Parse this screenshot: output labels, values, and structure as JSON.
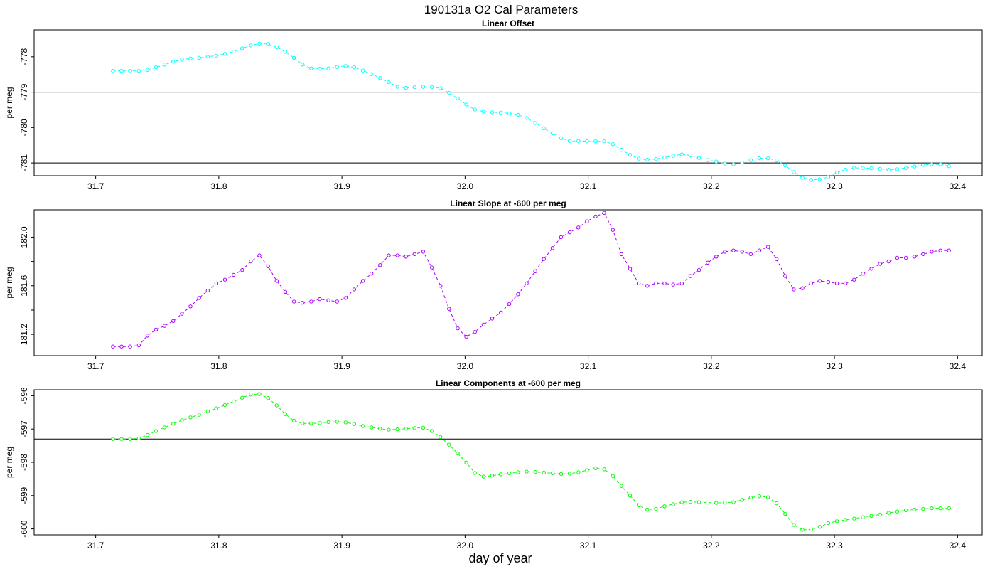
{
  "figure": {
    "title": "190131a   O2 Cal Parameters",
    "xlabel": "day of year"
  },
  "chart_data": [
    {
      "type": "line",
      "title": "Linear Offset",
      "ylabel": "per meg",
      "xlabel": "day of year",
      "color": "#00ffff",
      "xlim": [
        31.65,
        32.42
      ],
      "ylim": [
        -781.36,
        -777.24
      ],
      "xticks": [
        31.7,
        31.8,
        31.9,
        32.0,
        32.1,
        32.2,
        32.3,
        32.4
      ],
      "yticks": [
        -781,
        -780,
        -779,
        -778
      ],
      "hlines": [
        -779.0,
        -781.0
      ],
      "grid": false,
      "legend": "none",
      "series": [
        {
          "marker": "open-circle",
          "line": "dashed",
          "x": [
            31.714,
            31.721,
            31.728,
            31.735,
            31.742,
            31.749,
            31.756,
            31.763,
            31.77,
            31.777,
            31.784,
            31.791,
            31.798,
            31.805,
            31.812,
            31.819,
            31.826,
            31.833,
            31.84,
            31.847,
            31.854,
            31.861,
            31.868,
            31.875,
            31.882,
            31.889,
            31.896,
            31.903,
            31.91,
            31.917,
            31.924,
            31.931,
            31.938,
            31.945,
            31.952,
            31.959,
            31.966,
            31.973,
            31.98,
            31.987,
            31.994,
            32.001,
            32.008,
            32.015,
            32.022,
            32.029,
            32.036,
            32.043,
            32.05,
            32.057,
            32.064,
            32.071,
            32.078,
            32.085,
            32.092,
            32.099,
            32.106,
            32.113,
            32.12,
            32.127,
            32.134,
            32.141,
            32.148,
            32.155,
            32.162,
            32.169,
            32.176,
            32.183,
            32.19,
            32.197,
            32.204,
            32.211,
            32.218,
            32.225,
            32.232,
            32.239,
            32.246,
            32.253,
            32.26,
            32.267,
            32.274,
            32.281,
            32.288,
            32.295,
            32.302,
            32.309,
            32.316,
            32.323,
            32.33,
            32.337,
            32.344,
            32.351,
            32.358,
            32.365,
            32.372,
            32.379,
            32.386,
            32.393
          ],
          "y": [
            -778.4,
            -778.4,
            -778.4,
            -778.4,
            -778.37,
            -778.3,
            -778.22,
            -778.14,
            -778.08,
            -778.05,
            -778.03,
            -778.0,
            -777.97,
            -777.92,
            -777.85,
            -777.76,
            -777.68,
            -777.63,
            -777.64,
            -777.73,
            -777.86,
            -778.03,
            -778.22,
            -778.33,
            -778.34,
            -778.33,
            -778.29,
            -778.26,
            -778.3,
            -778.39,
            -778.49,
            -778.6,
            -778.72,
            -778.85,
            -778.88,
            -778.86,
            -778.85,
            -778.86,
            -778.89,
            -779.02,
            -779.18,
            -779.35,
            -779.49,
            -779.55,
            -779.57,
            -779.58,
            -779.6,
            -779.64,
            -779.73,
            -779.87,
            -780.02,
            -780.16,
            -780.3,
            -780.38,
            -780.38,
            -780.39,
            -780.39,
            -780.39,
            -780.47,
            -780.63,
            -780.77,
            -780.88,
            -780.91,
            -780.89,
            -780.85,
            -780.8,
            -780.76,
            -780.79,
            -780.86,
            -780.92,
            -780.96,
            -781.02,
            -781.04,
            -780.99,
            -780.92,
            -780.87,
            -780.87,
            -780.93,
            -781.07,
            -781.26,
            -781.42,
            -781.48,
            -781.46,
            -781.4,
            -781.27,
            -781.19,
            -781.14,
            -781.14,
            -781.15,
            -781.17,
            -781.19,
            -781.18,
            -781.14,
            -781.1,
            -781.06,
            -781.04,
            -781.04,
            -781.09
          ]
        }
      ]
    },
    {
      "type": "line",
      "title": "Linear Slope at -600 per meg",
      "ylabel": "per meg",
      "xlabel": "day of year",
      "color": "#aa00ff",
      "xlim": [
        31.65,
        32.42
      ],
      "ylim": [
        181.025,
        182.225
      ],
      "xticks": [
        31.7,
        31.8,
        31.9,
        32.0,
        32.1,
        32.2,
        32.3,
        32.4
      ],
      "yticks": [
        181.2,
        181.6,
        182.0
      ],
      "yticks_minor": [
        181.4,
        181.8
      ],
      "hlines": [],
      "grid": false,
      "legend": "none",
      "series": [
        {
          "marker": "open-circle",
          "line": "dashed",
          "x": [
            31.714,
            31.721,
            31.728,
            31.735,
            31.742,
            31.749,
            31.756,
            31.763,
            31.77,
            31.777,
            31.784,
            31.791,
            31.798,
            31.805,
            31.812,
            31.819,
            31.826,
            31.833,
            31.84,
            31.847,
            31.854,
            31.861,
            31.868,
            31.875,
            31.882,
            31.889,
            31.896,
            31.903,
            31.91,
            31.917,
            31.924,
            31.931,
            31.938,
            31.945,
            31.952,
            31.959,
            31.966,
            31.973,
            31.98,
            31.987,
            31.994,
            32.001,
            32.008,
            32.015,
            32.022,
            32.029,
            32.036,
            32.043,
            32.05,
            32.057,
            32.064,
            32.071,
            32.078,
            32.085,
            32.092,
            32.099,
            32.106,
            32.113,
            32.12,
            32.127,
            32.134,
            32.141,
            32.148,
            32.155,
            32.162,
            32.169,
            32.176,
            32.183,
            32.19,
            32.197,
            32.204,
            32.211,
            32.218,
            32.225,
            32.232,
            32.239,
            32.246,
            32.253,
            32.26,
            32.267,
            32.274,
            32.281,
            32.288,
            32.295,
            32.302,
            32.309,
            32.316,
            32.323,
            32.33,
            32.337,
            32.344,
            32.351,
            32.358,
            32.365,
            32.372,
            32.379,
            32.386,
            32.393
          ],
          "y": [
            181.1,
            181.1,
            181.1,
            181.11,
            181.19,
            181.24,
            181.27,
            181.31,
            181.37,
            181.43,
            181.5,
            181.56,
            181.62,
            181.65,
            181.69,
            181.73,
            181.8,
            181.85,
            181.76,
            181.64,
            181.55,
            181.47,
            181.46,
            181.47,
            181.49,
            181.48,
            181.47,
            181.5,
            181.57,
            181.64,
            181.7,
            181.77,
            181.85,
            181.85,
            181.84,
            181.86,
            181.88,
            181.75,
            181.6,
            181.41,
            181.25,
            181.18,
            181.22,
            181.28,
            181.33,
            181.38,
            181.45,
            181.53,
            181.62,
            181.72,
            181.82,
            181.91,
            182.0,
            182.04,
            182.08,
            182.13,
            182.17,
            182.2,
            182.06,
            181.86,
            181.74,
            181.62,
            181.6,
            181.62,
            181.62,
            181.61,
            181.62,
            181.68,
            181.73,
            181.79,
            181.84,
            181.88,
            181.89,
            181.88,
            181.86,
            181.89,
            181.92,
            181.82,
            181.68,
            181.57,
            181.58,
            181.62,
            181.64,
            181.63,
            181.62,
            181.62,
            181.65,
            181.7,
            181.74,
            181.78,
            181.8,
            181.83,
            181.83,
            181.84,
            181.86,
            181.88,
            181.89,
            181.89
          ]
        }
      ]
    },
    {
      "type": "line",
      "title": "Linear Components at -600 per meg",
      "ylabel": "per meg",
      "xlabel": "day of year",
      "color": "#00ff00",
      "xlim": [
        31.65,
        32.42
      ],
      "ylim": [
        -600.18,
        -595.82
      ],
      "xticks": [
        31.7,
        31.8,
        31.9,
        32.0,
        32.1,
        32.2,
        32.3,
        32.4
      ],
      "yticks": [
        -600,
        -599,
        -598,
        -597,
        -596
      ],
      "hlines": [
        -597.3,
        -599.4
      ],
      "grid": false,
      "legend": "none",
      "series": [
        {
          "marker": "open-circle",
          "line": "dashed",
          "x": [
            31.714,
            31.721,
            31.728,
            31.735,
            31.742,
            31.749,
            31.756,
            31.763,
            31.77,
            31.777,
            31.784,
            31.791,
            31.798,
            31.805,
            31.812,
            31.819,
            31.826,
            31.833,
            31.84,
            31.847,
            31.854,
            31.861,
            31.868,
            31.875,
            31.882,
            31.889,
            31.896,
            31.903,
            31.91,
            31.917,
            31.924,
            31.931,
            31.938,
            31.945,
            31.952,
            31.959,
            31.966,
            31.973,
            31.98,
            31.987,
            31.994,
            32.001,
            32.008,
            32.015,
            32.022,
            32.029,
            32.036,
            32.043,
            32.05,
            32.057,
            32.064,
            32.071,
            32.078,
            32.085,
            32.092,
            32.099,
            32.106,
            32.113,
            32.12,
            32.127,
            32.134,
            32.141,
            32.148,
            32.155,
            32.162,
            32.169,
            32.176,
            32.183,
            32.19,
            32.197,
            32.204,
            32.211,
            32.218,
            32.225,
            32.232,
            32.239,
            32.246,
            32.253,
            32.26,
            32.267,
            32.274,
            32.281,
            32.288,
            32.295,
            32.302,
            32.309,
            32.316,
            32.323,
            32.33,
            32.337,
            32.344,
            32.351,
            32.358,
            32.365,
            32.372,
            32.379,
            32.386,
            32.393
          ],
          "y": [
            -597.3,
            -597.3,
            -597.3,
            -597.28,
            -597.18,
            -597.06,
            -596.95,
            -596.84,
            -596.74,
            -596.65,
            -596.57,
            -596.47,
            -596.38,
            -596.28,
            -596.17,
            -596.06,
            -595.96,
            -595.95,
            -596.07,
            -596.29,
            -596.55,
            -596.75,
            -596.83,
            -596.83,
            -596.82,
            -596.79,
            -596.78,
            -596.8,
            -596.85,
            -596.91,
            -596.95,
            -596.99,
            -597.02,
            -597.01,
            -596.99,
            -596.97,
            -596.96,
            -597.06,
            -597.24,
            -597.47,
            -597.73,
            -598.01,
            -598.32,
            -598.43,
            -598.4,
            -598.36,
            -598.33,
            -598.3,
            -598.28,
            -598.29,
            -598.31,
            -598.33,
            -598.35,
            -598.34,
            -598.3,
            -598.24,
            -598.18,
            -598.21,
            -598.41,
            -598.71,
            -599.0,
            -599.29,
            -599.42,
            -599.4,
            -599.32,
            -599.26,
            -599.2,
            -599.19,
            -599.2,
            -599.21,
            -599.22,
            -599.21,
            -599.2,
            -599.13,
            -599.06,
            -599.02,
            -599.05,
            -599.23,
            -599.55,
            -599.88,
            -600.03,
            -600.02,
            -599.94,
            -599.83,
            -599.77,
            -599.73,
            -599.69,
            -599.65,
            -599.61,
            -599.57,
            -599.52,
            -599.48,
            -599.44,
            -599.42,
            -599.4,
            -599.38,
            -599.38,
            -599.38
          ]
        }
      ]
    }
  ]
}
